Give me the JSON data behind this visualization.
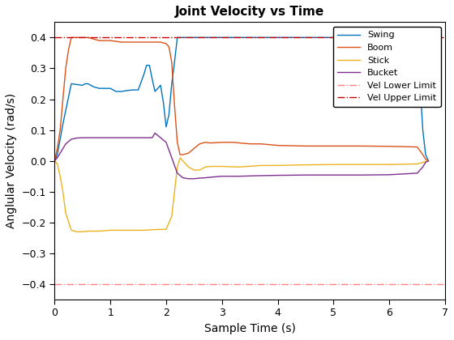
{
  "title": "Joint Velocity vs Time",
  "xlabel": "Sample Time (s)",
  "ylabel": "Anglular Velocity (rad/s)",
  "xlim": [
    0,
    7
  ],
  "ylim": [
    -0.45,
    0.45
  ],
  "yticks": [
    -0.4,
    -0.3,
    -0.2,
    -0.1,
    0.0,
    0.1,
    0.2,
    0.3,
    0.4
  ],
  "xticks": [
    0,
    1,
    2,
    3,
    4,
    5,
    6,
    7
  ],
  "vel_upper": 0.4,
  "vel_lower": -0.4,
  "swing_color": "#0072BD",
  "boom_color": "#D95319",
  "stick_color": "#EDB120",
  "bucket_color": "#7E2F8E",
  "limit_upper_color": "#CC0000",
  "limit_lower_color": "#FF8080",
  "axes_bg": "#F0F0F0",
  "swing": {
    "x": [
      0,
      0.05,
      0.15,
      0.3,
      0.5,
      0.55,
      0.6,
      0.65,
      0.7,
      0.8,
      0.9,
      1.0,
      1.1,
      1.2,
      1.3,
      1.4,
      1.5,
      1.6,
      1.65,
      1.7,
      1.75,
      1.8,
      1.85,
      1.9,
      1.95,
      2.0,
      2.05,
      2.1,
      2.15,
      2.2,
      2.3,
      2.35,
      2.4,
      2.5,
      3.0,
      3.5,
      4.0,
      4.5,
      5.0,
      5.5,
      6.0,
      6.4,
      6.5,
      6.55,
      6.6,
      6.65,
      6.7
    ],
    "y": [
      0.0,
      0.02,
      0.12,
      0.25,
      0.245,
      0.25,
      0.25,
      0.245,
      0.24,
      0.235,
      0.235,
      0.235,
      0.225,
      0.225,
      0.228,
      0.23,
      0.23,
      0.28,
      0.31,
      0.31,
      0.265,
      0.225,
      0.235,
      0.245,
      0.19,
      0.11,
      0.15,
      0.25,
      0.32,
      0.4,
      0.4,
      0.4,
      0.4,
      0.4,
      0.4,
      0.4,
      0.4,
      0.4,
      0.4,
      0.4,
      0.4,
      0.4,
      0.38,
      0.25,
      0.1,
      0.02,
      0.0
    ]
  },
  "boom": {
    "x": [
      0,
      0.05,
      0.1,
      0.15,
      0.2,
      0.25,
      0.3,
      0.35,
      0.4,
      0.5,
      0.6,
      0.7,
      0.8,
      1.0,
      1.2,
      1.4,
      1.6,
      1.7,
      1.8,
      1.9,
      2.0,
      2.05,
      2.1,
      2.15,
      2.2,
      2.25,
      2.3,
      2.4,
      2.5,
      2.6,
      2.7,
      2.8,
      3.0,
      3.2,
      3.5,
      3.7,
      4.0,
      4.5,
      5.0,
      5.5,
      6.0,
      6.5,
      6.6,
      6.65,
      6.7
    ],
    "y": [
      0.0,
      0.04,
      0.1,
      0.2,
      0.3,
      0.36,
      0.4,
      0.4,
      0.4,
      0.4,
      0.4,
      0.395,
      0.39,
      0.39,
      0.385,
      0.385,
      0.385,
      0.385,
      0.385,
      0.385,
      0.38,
      0.37,
      0.32,
      0.18,
      0.06,
      0.02,
      0.02,
      0.025,
      0.04,
      0.055,
      0.06,
      0.058,
      0.06,
      0.06,
      0.055,
      0.055,
      0.05,
      0.048,
      0.048,
      0.048,
      0.047,
      0.045,
      0.02,
      0.005,
      0.0
    ]
  },
  "stick": {
    "x": [
      0,
      0.05,
      0.1,
      0.15,
      0.2,
      0.3,
      0.4,
      0.5,
      0.6,
      0.7,
      0.8,
      1.0,
      1.2,
      1.4,
      1.6,
      1.8,
      2.0,
      2.1,
      2.15,
      2.2,
      2.25,
      2.3,
      2.4,
      2.5,
      2.6,
      2.7,
      2.8,
      3.0,
      3.3,
      3.7,
      4.0,
      4.5,
      5.0,
      5.5,
      6.0,
      6.5,
      6.6,
      6.65,
      6.7
    ],
    "y": [
      0.0,
      -0.01,
      -0.05,
      -0.1,
      -0.17,
      -0.225,
      -0.23,
      -0.23,
      -0.228,
      -0.228,
      -0.228,
      -0.225,
      -0.225,
      -0.225,
      -0.225,
      -0.223,
      -0.222,
      -0.18,
      -0.1,
      -0.02,
      0.01,
      0.0,
      -0.02,
      -0.03,
      -0.03,
      -0.02,
      -0.018,
      -0.018,
      -0.02,
      -0.015,
      -0.015,
      -0.013,
      -0.012,
      -0.012,
      -0.012,
      -0.01,
      -0.005,
      -0.002,
      0.0
    ]
  },
  "bucket": {
    "x": [
      0,
      0.05,
      0.1,
      0.15,
      0.2,
      0.3,
      0.4,
      0.5,
      0.6,
      0.7,
      0.8,
      1.0,
      1.2,
      1.4,
      1.6,
      1.75,
      1.8,
      1.9,
      2.0,
      2.1,
      2.2,
      2.3,
      2.4,
      2.5,
      2.6,
      2.7,
      2.8,
      3.0,
      3.3,
      3.7,
      4.0,
      4.5,
      5.0,
      5.5,
      6.0,
      6.5,
      6.6,
      6.65,
      6.7
    ],
    "y": [
      0.0,
      0.01,
      0.025,
      0.04,
      0.055,
      0.07,
      0.074,
      0.075,
      0.075,
      0.075,
      0.075,
      0.075,
      0.075,
      0.075,
      0.075,
      0.075,
      0.09,
      0.075,
      0.06,
      0.01,
      -0.04,
      -0.055,
      -0.058,
      -0.058,
      -0.056,
      -0.055,
      -0.053,
      -0.05,
      -0.05,
      -0.048,
      -0.047,
      -0.046,
      -0.046,
      -0.046,
      -0.045,
      -0.04,
      -0.02,
      -0.005,
      0.0
    ]
  },
  "legend_labels": [
    "Swing",
    "Boom",
    "Stick",
    "Bucket",
    "Vel Lower Limit",
    "Vel Upper Limit"
  ],
  "figsize": [
    5.6,
    4.2
  ],
  "dpi": 100
}
